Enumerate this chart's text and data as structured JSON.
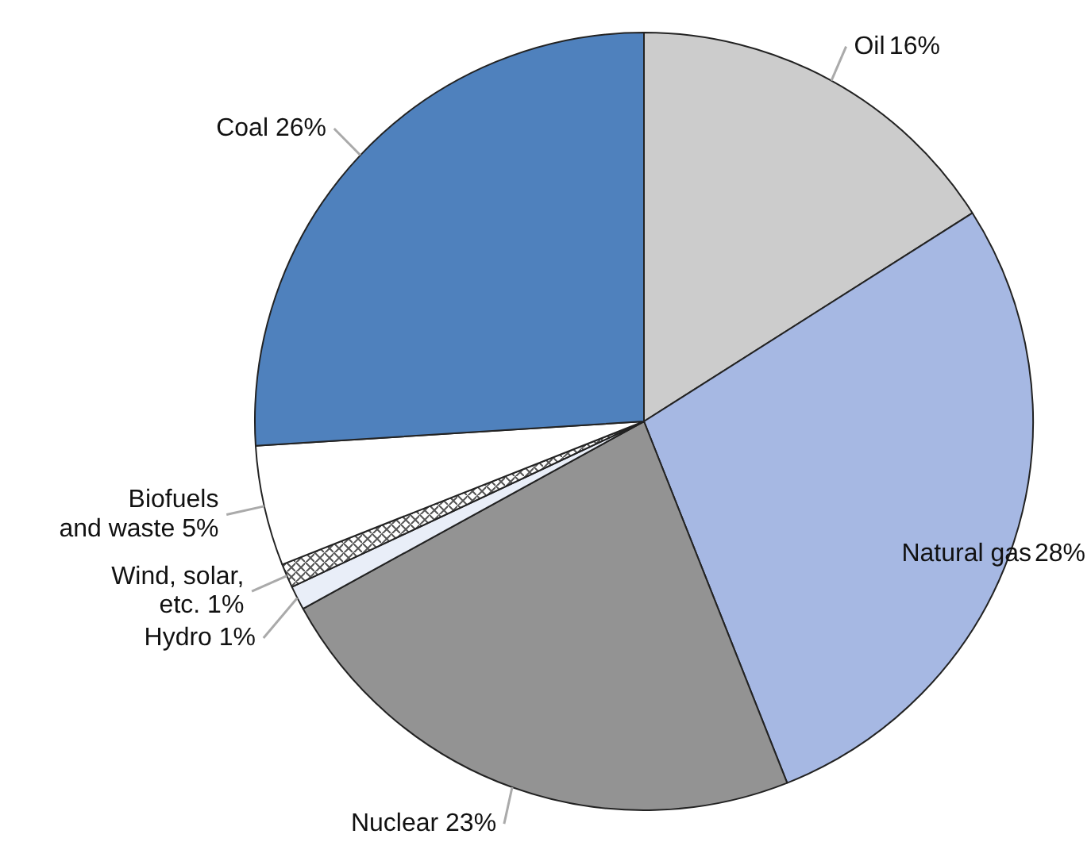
{
  "chart_data": {
    "type": "pie",
    "categories": [
      "Oil",
      "Natural gas",
      "Nuclear",
      "Hydro",
      "Wind, solar, etc.",
      "Biofuels and waste",
      "Coal"
    ],
    "values": [
      16,
      28,
      23,
      1,
      1,
      5,
      26
    ],
    "colors": [
      "#cccccc",
      "#a6b8e3",
      "#939393",
      "#e9eef8",
      "#ffffff",
      "#ffffff",
      "#4f81bd"
    ],
    "value_labels": [
      "16%",
      "28%",
      "23%",
      "1%",
      "1%",
      "5%",
      "26%"
    ],
    "legend": false
  }
}
